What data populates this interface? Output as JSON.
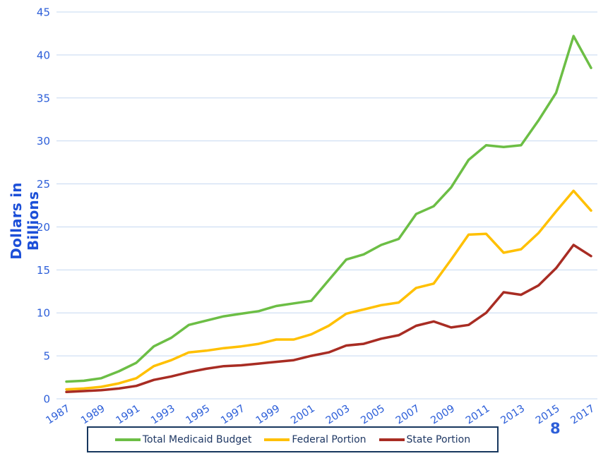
{
  "page": {
    "stray_page_number": "8"
  },
  "chart_data": {
    "type": "line",
    "title": "",
    "xlabel": "",
    "ylabel": "Dollars in Billions",
    "ylim": [
      0,
      45
    ],
    "y_ticks": [
      0,
      5,
      10,
      15,
      20,
      25,
      30,
      35,
      40,
      45
    ],
    "grid": "horizontal-only",
    "legend_position": "bottom",
    "x": [
      1987,
      1988,
      1989,
      1990,
      1991,
      1992,
      1993,
      1994,
      1995,
      1996,
      1997,
      1998,
      1999,
      2000,
      2001,
      2002,
      2003,
      2004,
      2005,
      2006,
      2007,
      2008,
      2009,
      2010,
      2011,
      2012,
      2013,
      2014,
      2015,
      2016,
      2017
    ],
    "x_labeled_ticks": [
      "1987",
      "1989",
      "1991",
      "1993",
      "1995",
      "1997",
      "1999",
      "2001",
      "2003",
      "2005",
      "2007",
      "2009",
      "2011",
      "2013",
      "2015",
      "2017"
    ],
    "series": [
      {
        "name": "Total Medicaid Budget",
        "color": "#6CBE45",
        "values": [
          2.0,
          2.1,
          2.4,
          3.2,
          4.2,
          6.1,
          7.1,
          8.6,
          9.1,
          9.6,
          9.9,
          10.2,
          10.8,
          11.1,
          11.4,
          13.8,
          16.2,
          16.8,
          17.9,
          18.6,
          21.5,
          22.4,
          24.6,
          27.8,
          29.5,
          29.3,
          29.5,
          32.4,
          35.6,
          42.2,
          38.5
        ]
      },
      {
        "name": "Federal Portion",
        "color": "#FFC000",
        "values": [
          1.1,
          1.2,
          1.4,
          1.8,
          2.4,
          3.8,
          4.5,
          5.4,
          5.6,
          5.9,
          6.1,
          6.4,
          6.9,
          6.9,
          7.5,
          8.5,
          9.9,
          10.4,
          10.9,
          11.2,
          12.9,
          13.4,
          16.2,
          19.1,
          19.2,
          17.0,
          17.4,
          19.3,
          21.8,
          24.2,
          21.9
        ]
      },
      {
        "name": "State Portion",
        "color": "#A82C23",
        "values": [
          0.8,
          0.9,
          1.0,
          1.2,
          1.5,
          2.2,
          2.6,
          3.1,
          3.5,
          3.8,
          3.9,
          4.1,
          4.3,
          4.5,
          5.0,
          5.4,
          6.2,
          6.4,
          7.0,
          7.4,
          8.5,
          9.0,
          8.3,
          8.6,
          10.0,
          12.4,
          12.1,
          13.2,
          15.2,
          17.9,
          16.6
        ]
      }
    ],
    "appearance": {
      "axis_text_color": "#2D5FD9",
      "axis_title_color": "#1C4FD8",
      "gridline_color": "#C5D8F1",
      "legend_text_color": "#1F3864",
      "legend_border_color": "#17375E",
      "background": "#FFFFFF"
    }
  }
}
